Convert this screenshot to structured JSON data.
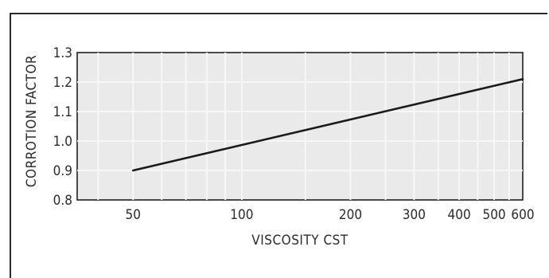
{
  "chart_data": {
    "type": "line",
    "title": "",
    "xlabel": "VISCOSITY CST",
    "ylabel": "CORROTION FACTOR",
    "x_scale": "log",
    "xlim": [
      35,
      600
    ],
    "ylim": [
      0.8,
      1.3
    ],
    "x_ticks": [
      {
        "value": 50,
        "label": "50"
      },
      {
        "value": 100,
        "label": "100"
      },
      {
        "value": 200,
        "label": "200"
      },
      {
        "value": 300,
        "label": "300"
      },
      {
        "value": 400,
        "label": "400"
      },
      {
        "value": 500,
        "label": "500"
      },
      {
        "value": 600,
        "label": "600"
      }
    ],
    "y_ticks": [
      {
        "value": 0.8,
        "label": "0.8"
      },
      {
        "value": 0.9,
        "label": "0.9"
      },
      {
        "value": 1.0,
        "label": "1.0"
      },
      {
        "value": 1.1,
        "label": "1.1"
      },
      {
        "value": 1.2,
        "label": "1.2"
      },
      {
        "value": 1.3,
        "label": "1.3"
      }
    ],
    "grid": true,
    "series": [
      {
        "x": [
          50,
          600
        ],
        "y": [
          0.9,
          1.21
        ]
      }
    ]
  }
}
